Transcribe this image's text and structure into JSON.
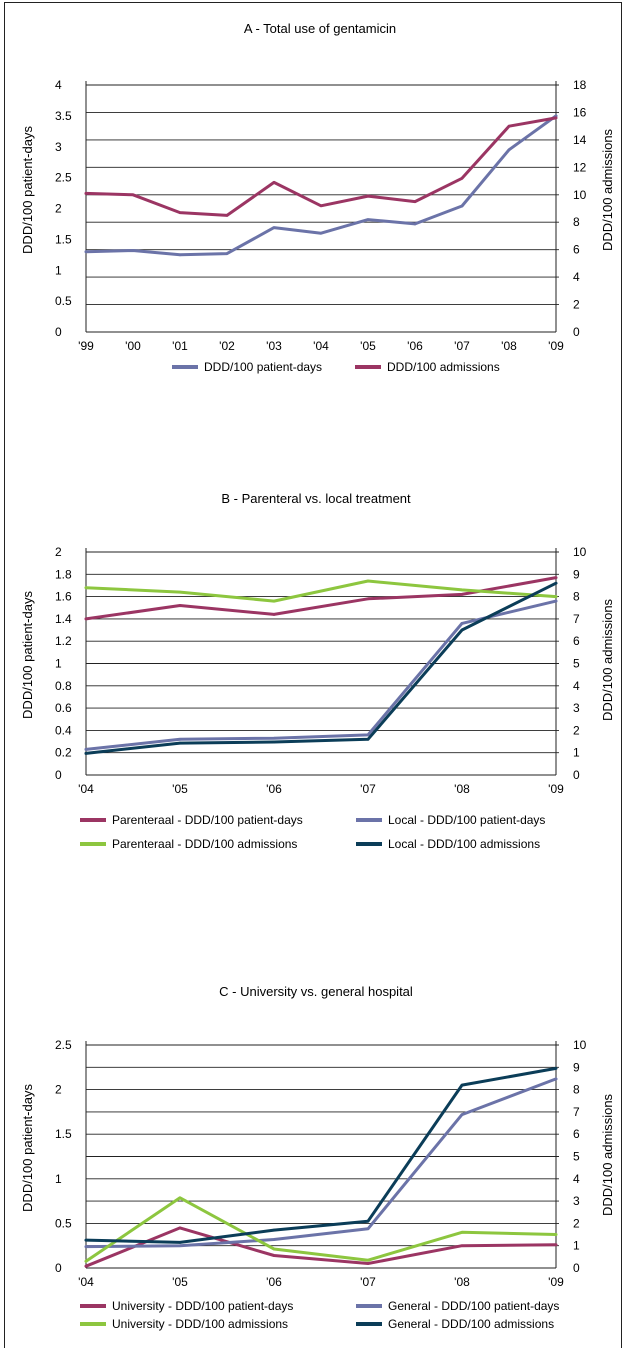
{
  "chart_data": [
    {
      "type": "line",
      "title": "A - Total use of gentamicin",
      "ylabel": "DDD/100 patient-days",
      "y2label": "DDD/100 admissions",
      "categories": [
        "'99",
        "'00",
        "'01",
        "'02",
        "'03",
        "'04",
        "'05",
        "'06",
        "'07",
        "'08",
        "'09"
      ],
      "ylim": [
        0,
        4
      ],
      "y2lim": [
        0,
        18
      ],
      "yticks": [
        "0",
        "0.5",
        "1",
        "1.5",
        "2",
        "2.5",
        "3",
        "3.5",
        "4"
      ],
      "y2ticks": [
        "0",
        "2",
        "4",
        "6",
        "8",
        "10",
        "12",
        "14",
        "16",
        "18"
      ],
      "legend_placement": "bottom",
      "grid": true,
      "series": [
        {
          "name": "DDD/100 patient-days",
          "axis": "left",
          "color": "#6b73a8",
          "values": [
            1.3,
            1.32,
            1.25,
            1.27,
            1.69,
            1.6,
            1.82,
            1.75,
            2.04,
            2.95,
            3.5
          ]
        },
        {
          "name": "DDD/100 admissions",
          "axis": "right",
          "color": "#9b3563",
          "values": [
            10.1,
            10.0,
            8.7,
            8.5,
            10.9,
            9.2,
            9.9,
            9.5,
            11.2,
            15.0,
            15.6
          ]
        }
      ]
    },
    {
      "type": "line",
      "title": "B - Parenteral vs. local treatment",
      "ylabel": "DDD/100 patient-days",
      "y2label": "DDD/100 admissions",
      "categories": [
        "'04",
        "'05",
        "'06",
        "'07",
        "'08",
        "'09"
      ],
      "ylim": [
        0,
        2
      ],
      "y2lim": [
        0,
        10
      ],
      "yticks": [
        "0",
        "0.2",
        "0.4",
        "0.6",
        "0.8",
        "1",
        "1.2",
        "1.4",
        "1.6",
        "1.8",
        "2"
      ],
      "y2ticks": [
        "0",
        "1",
        "2",
        "3",
        "4",
        "5",
        "6",
        "7",
        "8",
        "9",
        "10"
      ],
      "legend_placement": "bottom",
      "grid": true,
      "series": [
        {
          "name": "Parenteraal - DDD/100 patient-days",
          "axis": "left",
          "color": "#9b3563",
          "values": [
            1.4,
            1.52,
            1.44,
            1.58,
            1.62,
            1.77
          ]
        },
        {
          "name": "Local - DDD/100 patient-days",
          "axis": "left",
          "color": "#6b73a8",
          "values": [
            0.23,
            0.32,
            0.33,
            0.36,
            1.36,
            1.56
          ]
        },
        {
          "name": "Parenteraal - DDD/100 admissions",
          "axis": "right",
          "color": "#8dc63f",
          "values": [
            8.4,
            8.2,
            7.8,
            8.7,
            8.3,
            8.0
          ]
        },
        {
          "name": "Local - DDD/100 admissions",
          "axis": "right",
          "color": "#0b3d58",
          "values": [
            0.97,
            1.43,
            1.48,
            1.6,
            6.5,
            8.6
          ]
        }
      ]
    },
    {
      "type": "line",
      "title": "C - University vs. general hospital",
      "ylabel": "DDD/100 patient-days",
      "y2label": "DDD/100 admissions",
      "categories": [
        "'04",
        "'05",
        "'06",
        "'07",
        "'08",
        "'09"
      ],
      "ylim": [
        0,
        2.5
      ],
      "y2lim": [
        0,
        10
      ],
      "yticks": [
        "0",
        "0.5",
        "1",
        "1.5",
        "2",
        "2.5"
      ],
      "y2ticks": [
        "0",
        "1",
        "2",
        "3",
        "4",
        "5",
        "6",
        "7",
        "8",
        "9",
        "10"
      ],
      "legend_placement": "bottom",
      "grid": true,
      "series": [
        {
          "name": "University - DDD/100 patient-days",
          "axis": "left",
          "color": "#9b3563",
          "values": [
            0.02,
            0.45,
            0.14,
            0.05,
            0.25,
            0.26
          ]
        },
        {
          "name": "General - DDD/100 patient-days",
          "axis": "left",
          "color": "#6b73a8",
          "values": [
            0.24,
            0.25,
            0.32,
            0.44,
            1.72,
            2.12
          ]
        },
        {
          "name": "University - DDD/100 admissions",
          "axis": "right",
          "color": "#8dc63f",
          "values": [
            0.3,
            3.15,
            0.85,
            0.35,
            1.6,
            1.5
          ]
        },
        {
          "name": "General - DDD/100 admissions",
          "axis": "right",
          "color": "#0b3d58",
          "values": [
            1.25,
            1.15,
            1.7,
            2.1,
            8.2,
            8.95
          ]
        }
      ]
    }
  ]
}
